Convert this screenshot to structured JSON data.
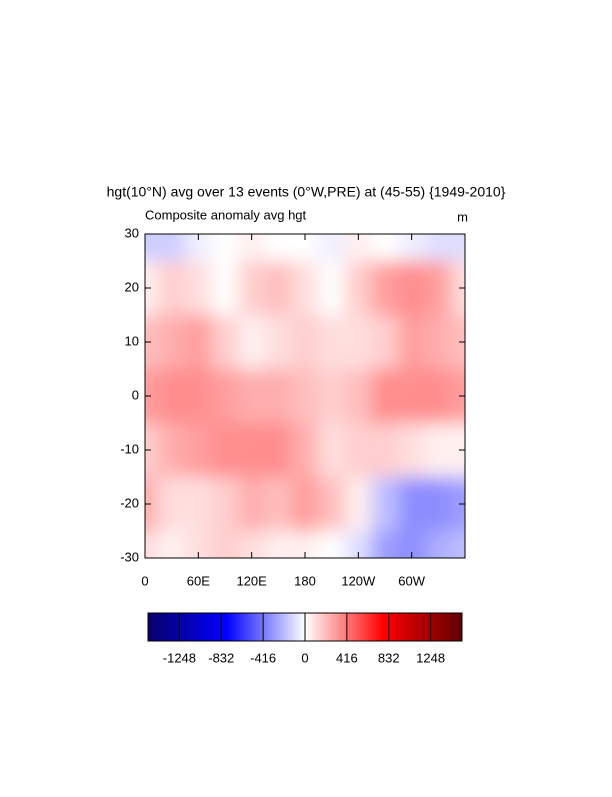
{
  "chart_data": {
    "type": "contour",
    "title": "hgt(10°N) avg over 13 events (0°W,PRE) at (45-55) {1949-2010}",
    "subtitle": "Composite anomaly avg hgt",
    "units": "m",
    "x": [
      0,
      30,
      60,
      90,
      120,
      150,
      180,
      210,
      240,
      270,
      300,
      330,
      360
    ],
    "y": [
      30,
      20,
      10,
      0,
      -10,
      -20,
      -30
    ],
    "z": [
      [
        -150,
        -150,
        -50,
        0,
        50,
        0,
        0,
        -50,
        50,
        0,
        -50,
        -100,
        -100
      ],
      [
        50,
        150,
        100,
        0,
        150,
        200,
        100,
        0,
        150,
        300,
        350,
        300,
        100
      ],
      [
        200,
        250,
        300,
        150,
        50,
        100,
        150,
        100,
        100,
        150,
        300,
        250,
        200
      ],
      [
        300,
        350,
        350,
        300,
        250,
        250,
        200,
        150,
        200,
        350,
        350,
        350,
        300
      ],
      [
        150,
        250,
        300,
        350,
        350,
        350,
        250,
        100,
        150,
        150,
        100,
        50,
        50
      ],
      [
        250,
        100,
        100,
        150,
        250,
        200,
        300,
        200,
        50,
        -200,
        -350,
        -350,
        -300
      ],
      [
        100,
        50,
        100,
        150,
        100,
        50,
        50,
        0,
        -100,
        -300,
        -350,
        -250,
        -200
      ]
    ],
    "xlim": [
      0,
      360
    ],
    "xticks": [
      0,
      {
        "value": 60,
        "label": "60E"
      },
      {
        "value": 120,
        "label": "120E"
      },
      180,
      {
        "value": 240,
        "label": "120W"
      },
      {
        "value": 300,
        "label": "60W"
      }
    ],
    "ylim": [
      -30,
      30
    ],
    "yticks": [
      30,
      20,
      10,
      0,
      -10,
      -20,
      -30
    ],
    "colormap": [
      "#08006a",
      "#0000ff",
      "#ffffff",
      "#ff0000",
      "#600000"
    ],
    "clim": [
      -1560,
      1560
    ],
    "colorbar_ticks": [
      -1248,
      -832,
      -416,
      0,
      416,
      832,
      1248
    ]
  }
}
